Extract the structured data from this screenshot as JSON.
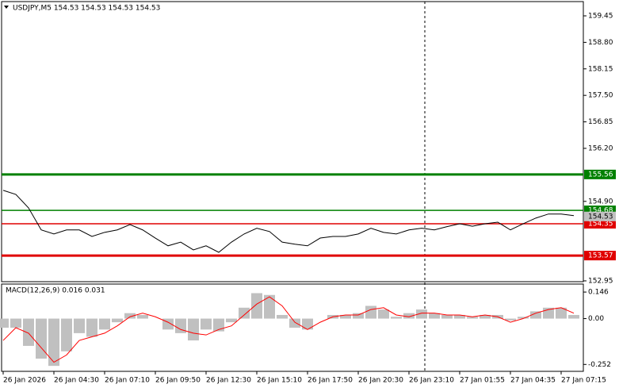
{
  "chart_data": [
    {
      "type": "line",
      "title": "USDJPY,M5  154.53 154.53 154.53 154.53",
      "categories": [
        "26 Jan 2026",
        null,
        null,
        null,
        "26 Jan 04:30",
        null,
        null,
        null,
        "26 Jan 07:10",
        null,
        null,
        null,
        "26 Jan 09:50",
        null,
        null,
        null,
        "26 Jan 12:30",
        null,
        null,
        null,
        "26 Jan 15:10",
        null,
        null,
        null,
        "26 Jan 17:50",
        null,
        null,
        null,
        "26 Jan 20:30",
        null,
        null,
        null,
        "26 Jan 23:10",
        null,
        null,
        null,
        "27 Jan 01:55",
        null,
        null,
        null,
        "27 Jan 04:35",
        null,
        null,
        null,
        "27 Jan 07:15",
        null
      ],
      "values": [
        155.17,
        155.07,
        154.74,
        154.2,
        154.1,
        154.2,
        154.2,
        154.04,
        154.14,
        154.2,
        154.33,
        154.2,
        154.0,
        153.81,
        153.9,
        153.71,
        153.81,
        153.65,
        153.9,
        154.1,
        154.24,
        154.16,
        153.9,
        153.85,
        153.81,
        154.0,
        154.04,
        154.04,
        154.1,
        154.24,
        154.14,
        154.1,
        154.2,
        154.24,
        154.2,
        154.28,
        154.35,
        154.29,
        154.35,
        154.39,
        154.2,
        154.35,
        154.49,
        154.59,
        154.59,
        154.55
      ],
      "color": "#000000",
      "ylim": [
        152.93,
        159.8
      ],
      "yticks": [
        152.95,
        {
          "value": 154.9,
          "label": "154.90"
        },
        {
          "value": 156.2,
          "label": "156.20"
        },
        156.85,
        {
          "value": 157.5,
          "label": "157.50"
        },
        158.15,
        {
          "value": 158.8,
          "label": "158.80"
        },
        159.45
      ],
      "levels": [
        {
          "value": 155.56,
          "color": "#008000",
          "thick": true
        },
        {
          "value": 154.68,
          "color": "#008000",
          "thick": false
        },
        {
          "value": 154.35,
          "color": "#e00000",
          "thick": false
        },
        {
          "value": 153.57,
          "color": "#e00000",
          "thick": true
        }
      ],
      "last_price": 154.53
    },
    {
      "type": "macd",
      "title": "MACD(12,26,9) 0.016 0.031",
      "series": [
        {
          "type": "bar",
          "color": "#c0c0c0",
          "values": [
            -0.05,
            -0.05,
            -0.15,
            -0.22,
            -0.26,
            -0.18,
            -0.08,
            -0.1,
            -0.06,
            -0.02,
            0.03,
            0.02,
            0.0,
            -0.06,
            -0.08,
            -0.12,
            -0.06,
            -0.07,
            -0.02,
            0.06,
            0.14,
            0.13,
            0.02,
            -0.05,
            -0.06,
            0.0,
            0.02,
            0.02,
            0.03,
            0.07,
            0.05,
            0.01,
            0.03,
            0.05,
            0.03,
            0.02,
            0.02,
            0.01,
            0.02,
            0.02,
            -0.01,
            0.01,
            0.04,
            0.06,
            0.06,
            0.02
          ]
        },
        {
          "type": "line",
          "color": "#ff0000",
          "values": [
            -0.12,
            -0.05,
            -0.08,
            -0.16,
            -0.24,
            -0.2,
            -0.12,
            -0.1,
            -0.08,
            -0.04,
            0.01,
            0.03,
            0.01,
            -0.02,
            -0.06,
            -0.08,
            -0.09,
            -0.06,
            -0.04,
            0.02,
            0.08,
            0.12,
            0.07,
            -0.02,
            -0.06,
            -0.02,
            0.01,
            0.02,
            0.02,
            0.05,
            0.06,
            0.02,
            0.01,
            0.03,
            0.03,
            0.02,
            0.02,
            0.01,
            0.02,
            0.01,
            -0.02,
            0.0,
            0.03,
            0.05,
            0.06,
            0.03
          ]
        }
      ],
      "ylim": [
        -0.29,
        0.19
      ],
      "yticks": [
        -0.252,
        {
          "value": 0,
          "label": "0.00"
        },
        0.146
      ]
    }
  ]
}
